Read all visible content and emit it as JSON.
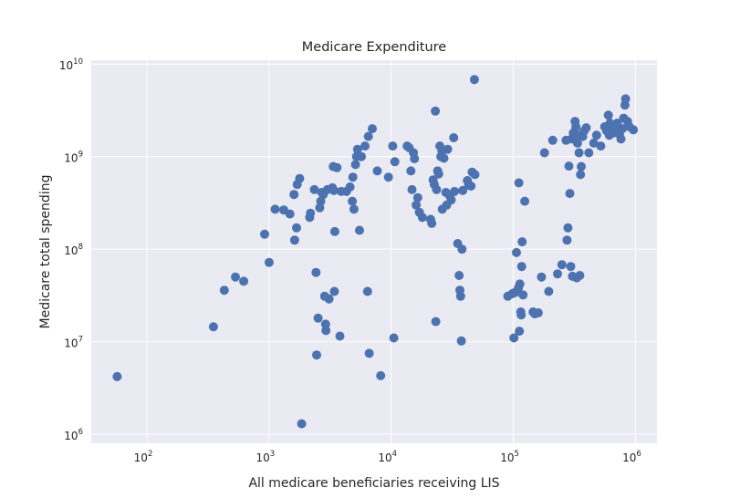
{
  "chart_data": {
    "type": "scatter",
    "title": "Medicare Expenditure",
    "xlabel": "All medicare beneficiaries receiving LIS",
    "ylabel": "Medicare total spending",
    "x_scale": "log",
    "y_scale": "log",
    "xlim": [
      35,
      1500000
    ],
    "ylim": [
      800000,
      11000000000
    ],
    "x_ticks": [
      {
        "value": 100,
        "base": "10",
        "exp": "2"
      },
      {
        "value": 1000,
        "base": "10",
        "exp": "3"
      },
      {
        "value": 10000,
        "base": "10",
        "exp": "4"
      },
      {
        "value": 100000,
        "base": "10",
        "exp": "5"
      },
      {
        "value": 1000000,
        "base": "10",
        "exp": "6"
      }
    ],
    "y_ticks": [
      {
        "value": 1000000,
        "base": "10",
        "exp": "6"
      },
      {
        "value": 10000000,
        "base": "10",
        "exp": "7"
      },
      {
        "value": 100000000,
        "base": "10",
        "exp": "8"
      },
      {
        "value": 1000000000,
        "base": "10",
        "exp": "9"
      },
      {
        "value": 10000000000,
        "base": "10",
        "exp": "10"
      }
    ],
    "grid": true,
    "colors": {
      "background": "#eaeaf2",
      "grid": "#ffffff",
      "marker": "#4c72b0"
    },
    "points": [
      [
        57,
        4200000
      ],
      [
        350,
        14500000
      ],
      [
        430,
        36000000
      ],
      [
        530,
        50000000
      ],
      [
        620,
        45000000
      ],
      [
        920,
        145000000
      ],
      [
        1000,
        72000000
      ],
      [
        1120,
        270000000
      ],
      [
        1320,
        265000000
      ],
      [
        1480,
        240000000
      ],
      [
        1600,
        390000000
      ],
      [
        1620,
        125000000
      ],
      [
        1680,
        170000000
      ],
      [
        1700,
        500000000
      ],
      [
        1780,
        580000000
      ],
      [
        1850,
        1300000
      ],
      [
        2150,
        220000000
      ],
      [
        2180,
        245000000
      ],
      [
        2350,
        440000000
      ],
      [
        2420,
        56000000
      ],
      [
        2450,
        7200000
      ],
      [
        2520,
        18000000
      ],
      [
        2600,
        280000000
      ],
      [
        2650,
        330000000
      ],
      [
        2700,
        410000000
      ],
      [
        2780,
        390000000
      ],
      [
        2850,
        31000000
      ],
      [
        2900,
        15500000
      ],
      [
        2920,
        13200000
      ],
      [
        3000,
        440000000
      ],
      [
        3100,
        29000000
      ],
      [
        3300,
        460000000
      ],
      [
        3350,
        780000000
      ],
      [
        3400,
        430000000
      ],
      [
        3420,
        35000000
      ],
      [
        3450,
        155000000
      ],
      [
        3600,
        760000000
      ],
      [
        3800,
        11500000
      ],
      [
        3900,
        420000000
      ],
      [
        4300,
        420000000
      ],
      [
        4600,
        470000000
      ],
      [
        4800,
        330000000
      ],
      [
        4850,
        600000000
      ],
      [
        4950,
        270000000
      ],
      [
        5100,
        820000000
      ],
      [
        5200,
        1000000000
      ],
      [
        5300,
        1200000000
      ],
      [
        5500,
        160000000
      ],
      [
        5700,
        1000000000
      ],
      [
        6100,
        1300000000
      ],
      [
        6400,
        35000000
      ],
      [
        6500,
        1650000000
      ],
      [
        6600,
        7500000
      ],
      [
        7000,
        2000000000
      ],
      [
        7700,
        700000000
      ],
      [
        8200,
        4300000
      ],
      [
        9500,
        600000000
      ],
      [
        10300,
        1300000000
      ],
      [
        10500,
        11000000
      ],
      [
        10700,
        880000000
      ],
      [
        13500,
        1300000000
      ],
      [
        14000,
        1250000000
      ],
      [
        14500,
        700000000
      ],
      [
        14800,
        440000000
      ],
      [
        15200,
        1100000000
      ],
      [
        15500,
        950000000
      ],
      [
        16000,
        300000000
      ],
      [
        16500,
        360000000
      ],
      [
        17000,
        250000000
      ],
      [
        18000,
        220000000
      ],
      [
        21000,
        210000000
      ],
      [
        21500,
        190000000
      ],
      [
        22000,
        560000000
      ],
      [
        22500,
        500000000
      ],
      [
        23000,
        3100000000
      ],
      [
        23200,
        16500000
      ],
      [
        23500,
        440000000
      ],
      [
        24000,
        700000000
      ],
      [
        24500,
        650000000
      ],
      [
        25000,
        1300000000
      ],
      [
        25500,
        1000000000
      ],
      [
        26000,
        1150000000
      ],
      [
        26200,
        270000000
      ],
      [
        27000,
        960000000
      ],
      [
        28000,
        410000000
      ],
      [
        28500,
        300000000
      ],
      [
        29000,
        1200000000
      ],
      [
        30000,
        380000000
      ],
      [
        31000,
        340000000
      ],
      [
        32500,
        1600000000
      ],
      [
        33000,
        420000000
      ],
      [
        35000,
        115000000
      ],
      [
        36000,
        52000000
      ],
      [
        36500,
        36000000
      ],
      [
        37000,
        31000000
      ],
      [
        37500,
        10200000
      ],
      [
        38000,
        100000000
      ],
      [
        38500,
        430000000
      ],
      [
        42000,
        550000000
      ],
      [
        43000,
        490000000
      ],
      [
        45000,
        480000000
      ],
      [
        46000,
        680000000
      ],
      [
        48000,
        6800000000
      ],
      [
        48500,
        640000000
      ],
      [
        90000,
        31000000
      ],
      [
        98000,
        33000000
      ],
      [
        101000,
        11000000
      ],
      [
        103000,
        34000000
      ],
      [
        106000,
        92000000
      ],
      [
        110000,
        38000000
      ],
      [
        111000,
        520000000
      ],
      [
        112000,
        13000000
      ],
      [
        113000,
        42000000
      ],
      [
        115000,
        21000000
      ],
      [
        116000,
        19500000
      ],
      [
        117000,
        65000000
      ],
      [
        118000,
        120000000
      ],
      [
        120000,
        32000000
      ],
      [
        124000,
        330000000
      ],
      [
        145000,
        21000000
      ],
      [
        150000,
        20000000
      ],
      [
        160000,
        20500000
      ],
      [
        170000,
        50000000
      ],
      [
        180000,
        1100000000
      ],
      [
        195000,
        35000000
      ],
      [
        210000,
        1500000000
      ],
      [
        230000,
        54000000
      ],
      [
        250000,
        68000000
      ],
      [
        270000,
        1500000000
      ],
      [
        275000,
        125000000
      ],
      [
        280000,
        170000000
      ],
      [
        285000,
        790000000
      ],
      [
        290000,
        400000000
      ],
      [
        295000,
        65000000
      ],
      [
        300000,
        1550000000
      ],
      [
        305000,
        51000000
      ],
      [
        310000,
        1800000000
      ],
      [
        320000,
        2400000000
      ],
      [
        325000,
        2100000000
      ],
      [
        330000,
        49000000
      ],
      [
        335000,
        1400000000
      ],
      [
        340000,
        1700000000
      ],
      [
        345000,
        1100000000
      ],
      [
        350000,
        52000000
      ],
      [
        355000,
        640000000
      ],
      [
        360000,
        780000000
      ],
      [
        370000,
        1650000000
      ],
      [
        380000,
        1900000000
      ],
      [
        395000,
        2050000000
      ],
      [
        415000,
        1100000000
      ],
      [
        455000,
        1400000000
      ],
      [
        480000,
        1700000000
      ],
      [
        520000,
        1300000000
      ],
      [
        560000,
        2100000000
      ],
      [
        580000,
        1900000000
      ],
      [
        600000,
        2800000000
      ],
      [
        610000,
        1700000000
      ],
      [
        620000,
        2300000000
      ],
      [
        640000,
        2000000000
      ],
      [
        660000,
        1800000000
      ],
      [
        690000,
        2100000000
      ],
      [
        710000,
        2300000000
      ],
      [
        740000,
        1750000000
      ],
      [
        760000,
        1550000000
      ],
      [
        780000,
        2000000000
      ],
      [
        800000,
        2600000000
      ],
      [
        820000,
        3600000000
      ],
      [
        830000,
        4200000000
      ],
      [
        860000,
        2400000000
      ],
      [
        890000,
        2100000000
      ],
      [
        960000,
        1950000000
      ]
    ]
  }
}
